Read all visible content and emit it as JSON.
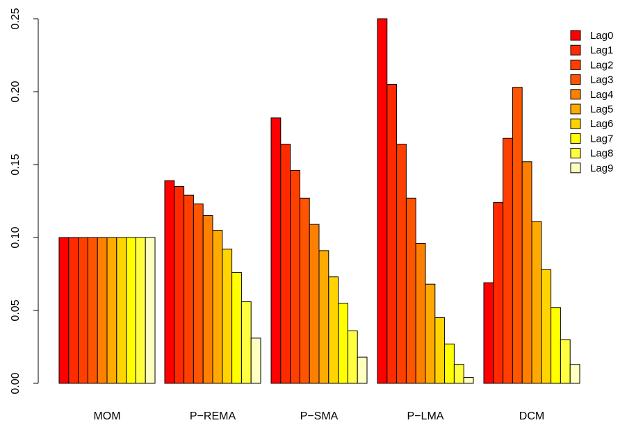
{
  "chart_data": {
    "type": "bar",
    "title": "",
    "xlabel": "",
    "ylabel": "",
    "ylim": [
      0,
      0.25
    ],
    "yticks": [
      "0.00",
      "0.05",
      "0.10",
      "0.15",
      "0.20",
      "0.25"
    ],
    "categories": [
      "MOM",
      "P−REMA",
      "P−SMA",
      "P−LMA",
      "DCM"
    ],
    "legend_position": "top-right",
    "series": [
      {
        "name": "Lag0",
        "color": "#FF0000",
        "values": [
          0.1,
          0.139,
          0.182,
          0.25,
          0.069
        ]
      },
      {
        "name": "Lag1",
        "color": "#FF2A00",
        "values": [
          0.1,
          0.135,
          0.164,
          0.205,
          0.124
        ]
      },
      {
        "name": "Lag2",
        "color": "#FF3F00",
        "values": [
          0.1,
          0.129,
          0.146,
          0.164,
          0.168
        ]
      },
      {
        "name": "Lag3",
        "color": "#FF5500",
        "values": [
          0.1,
          0.123,
          0.127,
          0.127,
          0.203
        ]
      },
      {
        "name": "Lag4",
        "color": "#FF7F00",
        "values": [
          0.1,
          0.115,
          0.109,
          0.096,
          0.152
        ]
      },
      {
        "name": "Lag5",
        "color": "#FFAA00",
        "values": [
          0.1,
          0.105,
          0.091,
          0.068,
          0.111
        ]
      },
      {
        "name": "Lag6",
        "color": "#FFD400",
        "values": [
          0.1,
          0.092,
          0.073,
          0.045,
          0.078
        ]
      },
      {
        "name": "Lag7",
        "color": "#FFFF00",
        "values": [
          0.1,
          0.076,
          0.055,
          0.027,
          0.052
        ]
      },
      {
        "name": "Lag8",
        "color": "#FFFF40",
        "values": [
          0.1,
          0.056,
          0.036,
          0.013,
          0.03
        ]
      },
      {
        "name": "Lag9",
        "color": "#FFFFBF",
        "values": [
          0.1,
          0.031,
          0.018,
          0.004,
          0.013
        ]
      }
    ]
  }
}
